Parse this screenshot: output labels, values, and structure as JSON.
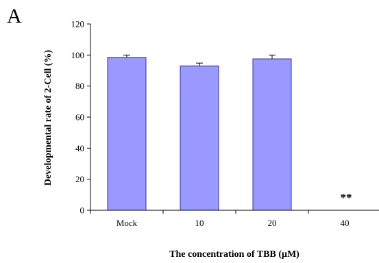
{
  "panel_label": "A",
  "colors": {
    "bar_fill": "#9999FF",
    "bar_stroke": "#333399",
    "axis": "#000000"
  },
  "chart_data": {
    "type": "bar",
    "categories": [
      "Mock",
      "10",
      "20",
      "40"
    ],
    "values": [
      98.5,
      93,
      97.5,
      0
    ],
    "errors": [
      1.5,
      1.8,
      2.5,
      0
    ],
    "xlabel": "The concentration of TBB (μM)",
    "ylabel": "Developmental rate of 2-Cell (%)",
    "ylim": [
      0,
      120
    ],
    "yticks": [
      "0",
      "20",
      "40",
      "60",
      "80",
      "100",
      "120"
    ],
    "grid": false,
    "annotations": [
      {
        "category": "40",
        "text": "**"
      }
    ]
  }
}
